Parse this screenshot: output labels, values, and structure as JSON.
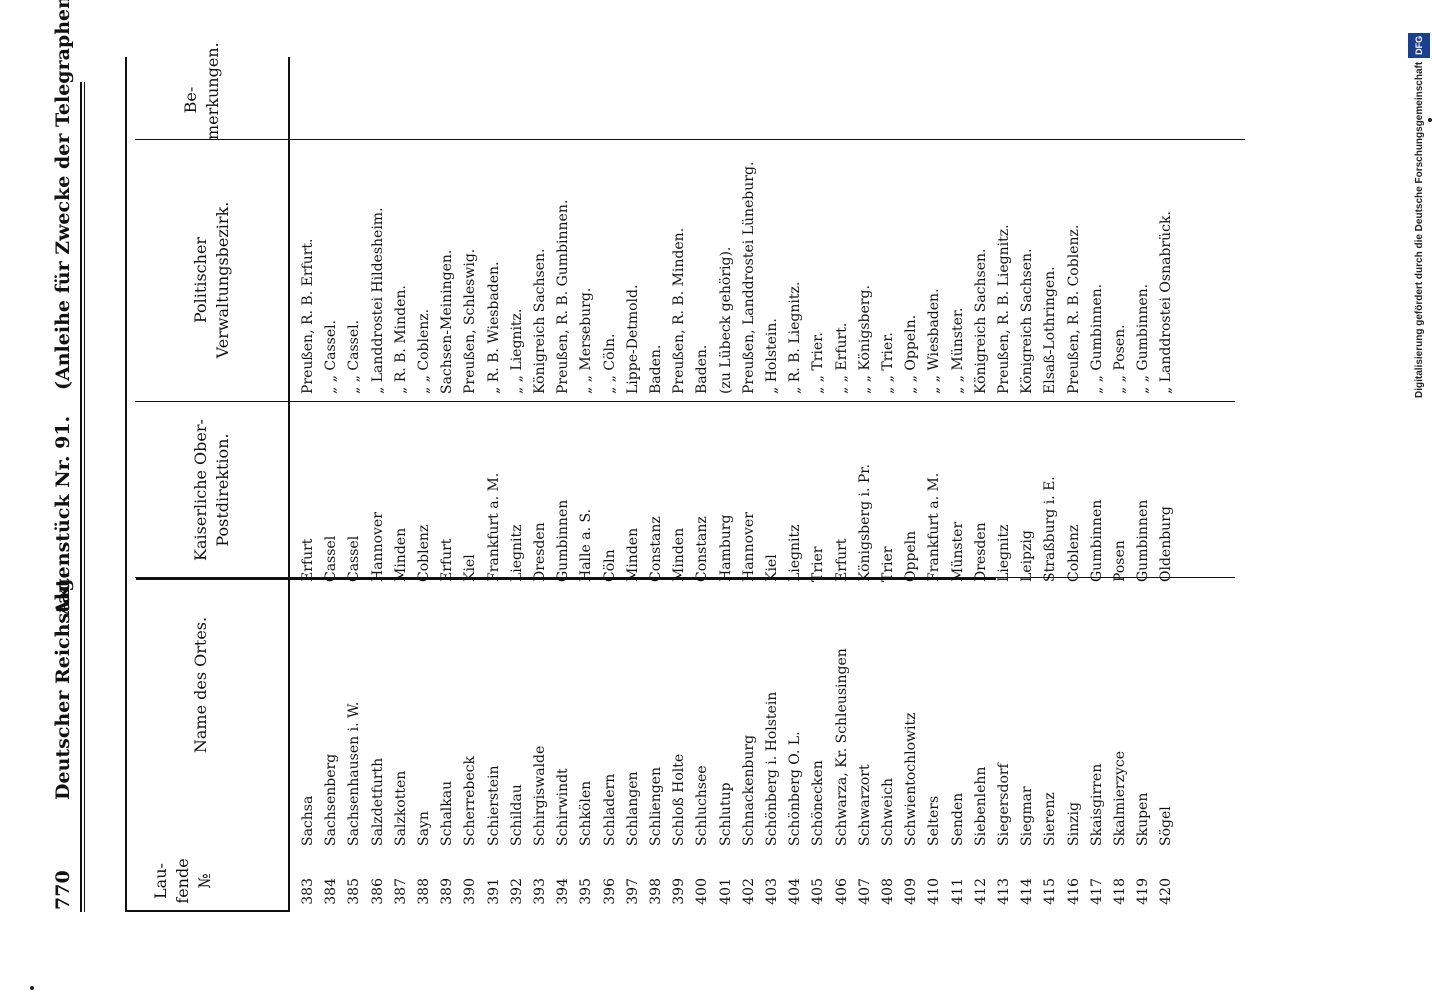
{
  "header": {
    "page_number": "770",
    "left": "Deutscher Reichstag.",
    "center": "Aktenstück Nr. 91.",
    "right": "(Anleihe für Zwecke der Telegraphen-Verwaltung.)"
  },
  "columns": {
    "laufende": "Lau-fende №",
    "name": "Name des Ortes.",
    "post": "Kaiserliche Ober-Postdirektion.",
    "bezirk": "Politischer Verwaltungsbezirk.",
    "bemerkungen": "Be-merkungen."
  },
  "rows": [
    {
      "nr": "383",
      "ort": "Sachsa",
      "post": "Erfurt",
      "bezirk": "Preußen, R. B. Erfurt."
    },
    {
      "nr": "384",
      "ort": "Sachsenberg",
      "post": "Cassel",
      "bezirk": "„ „ Cassel."
    },
    {
      "nr": "385",
      "ort": "Sachsenhausen i. W.",
      "post": "Cassel",
      "bezirk": "„ „ Cassel."
    },
    {
      "nr": "386",
      "ort": "Salzdetfurth",
      "post": "Hannover",
      "bezirk": "„ Landdrostei Hildesheim."
    },
    {
      "nr": "387",
      "ort": "Salzkotten",
      "post": "Minden",
      "bezirk": "„ R. B. Minden."
    },
    {
      "nr": "388",
      "ort": "Sayn",
      "post": "Coblenz",
      "bezirk": "„ „ Coblenz."
    },
    {
      "nr": "389",
      "ort": "Schalkau",
      "post": "Erfurt",
      "bezirk": "Sachsen-Meiningen."
    },
    {
      "nr": "390",
      "ort": "Scherrebeck",
      "post": "Kiel",
      "bezirk": "Preußen, Schleswig."
    },
    {
      "nr": "391",
      "ort": "Schierstein",
      "post": "Frankfurt a. M.",
      "bezirk": "„ R. B. Wiesbaden."
    },
    {
      "nr": "392",
      "ort": "Schildau",
      "post": "Liegnitz",
      "bezirk": "„ „ Liegnitz."
    },
    {
      "nr": "393",
      "ort": "Schirgiswalde",
      "post": "Dresden",
      "bezirk": "Königreich Sachsen."
    },
    {
      "nr": "394",
      "ort": "Schirwindt",
      "post": "Gumbinnen",
      "bezirk": "Preußen, R. B. Gumbinnen."
    },
    {
      "nr": "395",
      "ort": "Schkölen",
      "post": "Halle a. S.",
      "bezirk": "„ „ Merseburg."
    },
    {
      "nr": "396",
      "ort": "Schladern",
      "post": "Cöln",
      "bezirk": "„ „ Cöln."
    },
    {
      "nr": "397",
      "ort": "Schlangen",
      "post": "Minden",
      "bezirk": "Lippe-Detmold."
    },
    {
      "nr": "398",
      "ort": "Schliengen",
      "post": "Constanz",
      "bezirk": "Baden."
    },
    {
      "nr": "399",
      "ort": "Schloß Holte",
      "post": "Minden",
      "bezirk": "Preußen, R. B. Minden."
    },
    {
      "nr": "400",
      "ort": "Schluchsee",
      "post": "Constanz",
      "bezirk": "Baden."
    },
    {
      "nr": "401",
      "ort": "Schlutup",
      "post": "Hamburg",
      "bezirk": "(zu Lübeck gehörig)."
    },
    {
      "nr": "402",
      "ort": "Schnackenburg",
      "post": "Hannover",
      "bezirk": "Preußen, Landdrostei Lüneburg."
    },
    {
      "nr": "403",
      "ort": "Schönberg i. Holstein",
      "post": "Kiel",
      "bezirk": "„ Holstein."
    },
    {
      "nr": "404",
      "ort": "Schönberg O. L.",
      "post": "Liegnitz",
      "bezirk": "„ R. B. Liegnitz."
    },
    {
      "nr": "405",
      "ort": "Schönecken",
      "post": "Trier",
      "bezirk": "„ „ Trier."
    },
    {
      "nr": "406",
      "ort": "Schwarza, Kr. Schleusingen",
      "post": "Erfurt",
      "bezirk": "„ „ Erfurt."
    },
    {
      "nr": "407",
      "ort": "Schwarzort",
      "post": "Königsberg i. Pr.",
      "bezirk": "„ „ Königsberg."
    },
    {
      "nr": "408",
      "ort": "Schweich",
      "post": "Trier",
      "bezirk": "„ „ Trier."
    },
    {
      "nr": "409",
      "ort": "Schwientochlowitz",
      "post": "Oppeln",
      "bezirk": "„ „ Oppeln."
    },
    {
      "nr": "410",
      "ort": "Selters",
      "post": "Frankfurt a. M.",
      "bezirk": "„ „ Wiesbaden."
    },
    {
      "nr": "411",
      "ort": "Senden",
      "post": "Münster",
      "bezirk": "„ „ Münster."
    },
    {
      "nr": "412",
      "ort": "Siebenlehn",
      "post": "Dresden",
      "bezirk": "Königreich Sachsen."
    },
    {
      "nr": "413",
      "ort": "Siegersdorf",
      "post": "Liegnitz",
      "bezirk": "Preußen, R. B. Liegnitz."
    },
    {
      "nr": "414",
      "ort": "Siegmar",
      "post": "Leipzig",
      "bezirk": "Königreich Sachsen."
    },
    {
      "nr": "415",
      "ort": "Sierenz",
      "post": "Straßburg i. E.",
      "bezirk": "Elsaß-Lothringen."
    },
    {
      "nr": "416",
      "ort": "Sinzig",
      "post": "Coblenz",
      "bezirk": "Preußen, R. B. Coblenz."
    },
    {
      "nr": "417",
      "ort": "Skaisgirren",
      "post": "Gumbinnen",
      "bezirk": "„ „ Gumbinnen."
    },
    {
      "nr": "418",
      "ort": "Skalmierzyce",
      "post": "Posen",
      "bezirk": "„ „ Posen."
    },
    {
      "nr": "419",
      "ort": "Skupen",
      "post": "Gumbinnen",
      "bezirk": "„ „ Gumbinnen."
    },
    {
      "nr": "420",
      "ort": "Sögel",
      "post": "Oldenburg",
      "bezirk": "„ Landdrostei Osnabrück."
    }
  ],
  "footer": {
    "credit": "Digitalisierung gefördert durch die Deutsche Forschungsgemeinschaft",
    "badge": "DFG"
  }
}
